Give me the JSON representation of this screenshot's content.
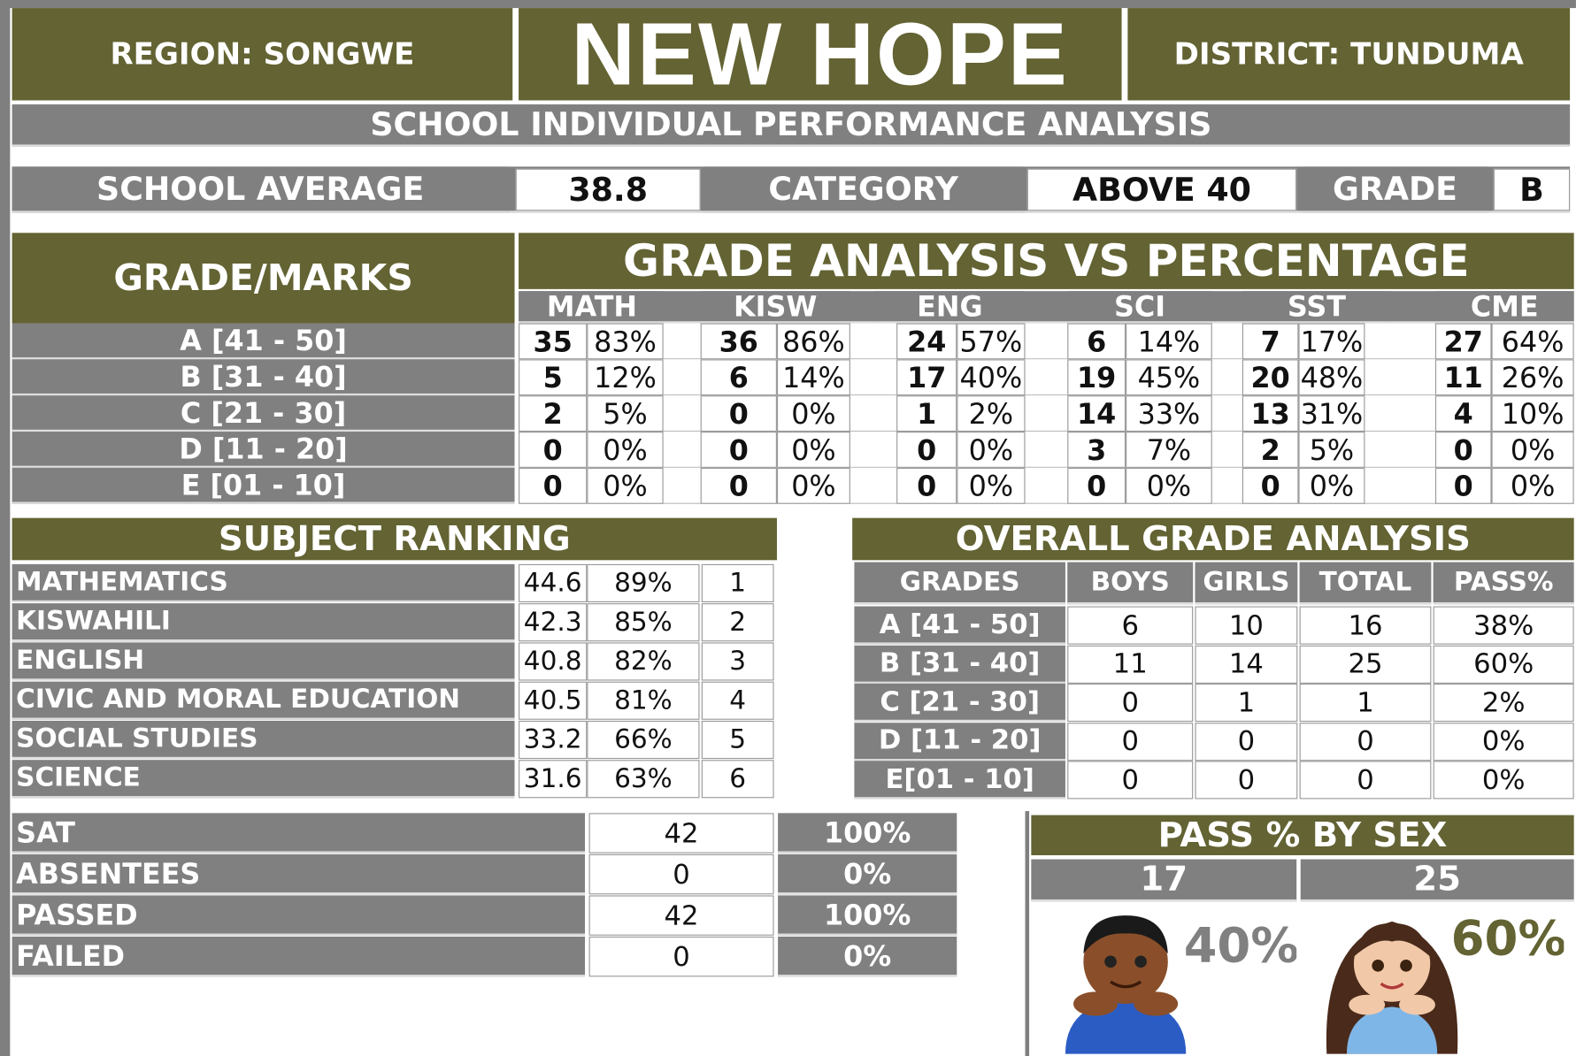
{
  "header": {
    "region": "REGION: SONGWE",
    "school": "NEW HOPE",
    "district": "DISTRICT: TUNDUMA",
    "subtitle": "SCHOOL INDIVIDUAL PERFORMANCE ANALYSIS"
  },
  "summary": {
    "average_label": "SCHOOL AVERAGE",
    "average": "38.8",
    "category_label": "CATEGORY",
    "category": "ABOVE 40",
    "grade_label": "GRADE",
    "grade": "B"
  },
  "grade_analysis": {
    "corner": "GRADE/MARKS",
    "title": "GRADE ANALYSIS VS PERCENTAGE",
    "subjects": [
      "MATH",
      "KISW",
      "ENG",
      "SCI",
      "SST",
      "CME"
    ],
    "rows": [
      {
        "grade": "A [41 - 50]",
        "cells": [
          [
            "35",
            "83%"
          ],
          [
            "36",
            "86%"
          ],
          [
            "24",
            "57%"
          ],
          [
            "6",
            "14%"
          ],
          [
            "7",
            "17%"
          ],
          [
            "27",
            "64%"
          ]
        ]
      },
      {
        "grade": "B [31 - 40]",
        "cells": [
          [
            "5",
            "12%"
          ],
          [
            "6",
            "14%"
          ],
          [
            "17",
            "40%"
          ],
          [
            "19",
            "45%"
          ],
          [
            "20",
            "48%"
          ],
          [
            "11",
            "26%"
          ]
        ]
      },
      {
        "grade": "C [21 - 30]",
        "cells": [
          [
            "2",
            "5%"
          ],
          [
            "0",
            "0%"
          ],
          [
            "1",
            "2%"
          ],
          [
            "14",
            "33%"
          ],
          [
            "13",
            "31%"
          ],
          [
            "4",
            "10%"
          ]
        ]
      },
      {
        "grade": "D [11 - 20]",
        "cells": [
          [
            "0",
            "0%"
          ],
          [
            "0",
            "0%"
          ],
          [
            "0",
            "0%"
          ],
          [
            "3",
            "7%"
          ],
          [
            "2",
            "5%"
          ],
          [
            "0",
            "0%"
          ]
        ]
      },
      {
        "grade": "E [01 - 10]",
        "cells": [
          [
            "0",
            "0%"
          ],
          [
            "0",
            "0%"
          ],
          [
            "0",
            "0%"
          ],
          [
            "0",
            "0%"
          ],
          [
            "0",
            "0%"
          ],
          [
            "0",
            "0%"
          ]
        ]
      }
    ]
  },
  "subject_ranking": {
    "title": "SUBJECT RANKING",
    "rows": [
      [
        "MATHEMATICS",
        "44.6",
        "89%",
        "1"
      ],
      [
        "KISWAHILI",
        "42.3",
        "85%",
        "2"
      ],
      [
        "ENGLISH",
        "40.8",
        "82%",
        "3"
      ],
      [
        "CIVIC AND MORAL EDUCATION",
        "40.5",
        "81%",
        "4"
      ],
      [
        "SOCIAL STUDIES",
        "33.2",
        "66%",
        "5"
      ],
      [
        "SCIENCE",
        "31.6",
        "63%",
        "6"
      ]
    ]
  },
  "overall": {
    "title": "OVERALL GRADE ANALYSIS",
    "headers": [
      "GRADES",
      "BOYS",
      "GIRLS",
      "TOTAL",
      "PASS%"
    ],
    "rows": [
      [
        "A [41 - 50]",
        "6",
        "10",
        "16",
        "38%"
      ],
      [
        "B [31 - 40]",
        "11",
        "14",
        "25",
        "60%"
      ],
      [
        "C [21 - 30]",
        "0",
        "1",
        "1",
        "2%"
      ],
      [
        "D [11 - 20]",
        "0",
        "0",
        "0",
        "0%"
      ],
      [
        "E[01 - 10]",
        "0",
        "0",
        "0",
        "0%"
      ]
    ]
  },
  "attendance": {
    "rows": [
      [
        "SAT",
        "42",
        "100%"
      ],
      [
        "ABSENTEES",
        "0",
        "0%"
      ],
      [
        "PASSED",
        "42",
        "100%"
      ],
      [
        "FAILED",
        "0",
        "0%"
      ]
    ]
  },
  "pass_by_sex": {
    "title": "PASS % BY SEX",
    "boys": "17",
    "girls": "25",
    "boys_pct": "40%",
    "girls_pct": "60%"
  }
}
